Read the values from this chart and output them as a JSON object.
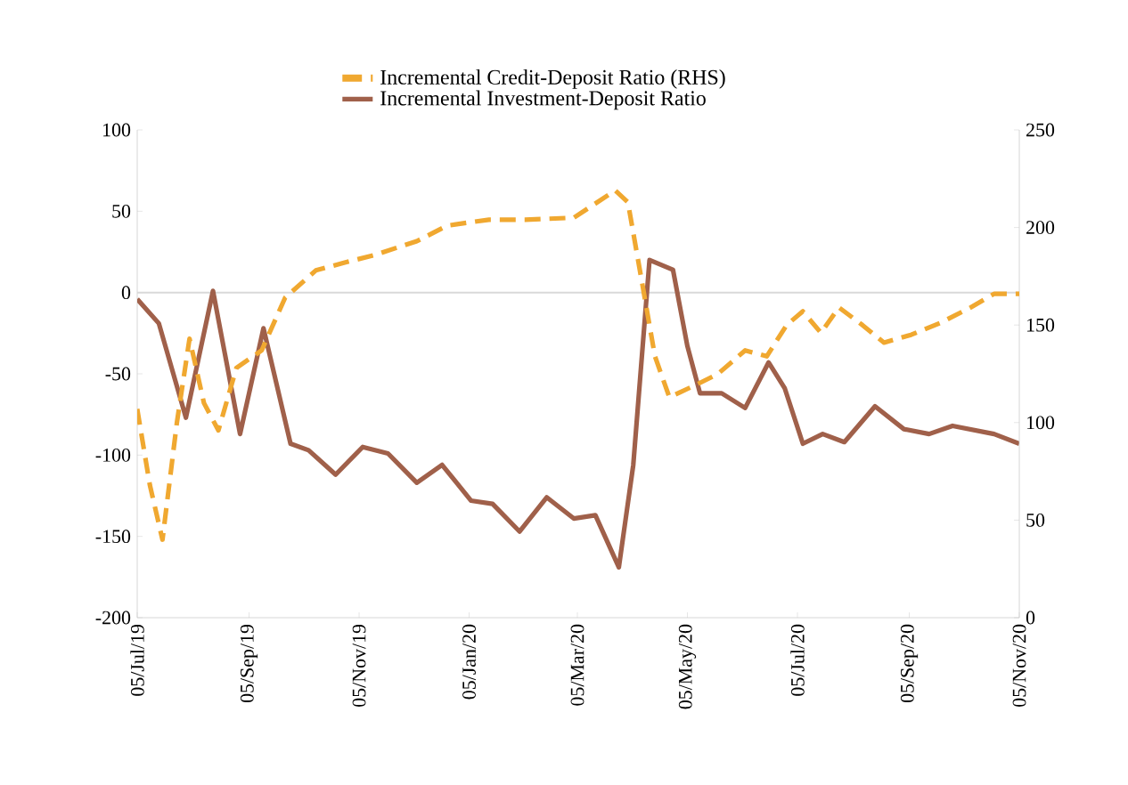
{
  "chart_data": {
    "type": "line",
    "xlim": [
      "2019-07-05",
      "2020-11-05"
    ],
    "xticks": [
      {
        "value": "2019-07-05",
        "label": "05/Jul/19"
      },
      {
        "value": "2019-09-05",
        "label": "05/Sep/19"
      },
      {
        "value": "2019-11-05",
        "label": "05/Nov/19"
      },
      {
        "value": "2020-01-05",
        "label": "05/Jan/20"
      },
      {
        "value": "2020-03-05",
        "label": "05/Mar/20"
      },
      {
        "value": "2020-05-05",
        "label": "05/May/20"
      },
      {
        "value": "2020-07-05",
        "label": "05/Jul/20"
      },
      {
        "value": "2020-09-05",
        "label": "05/Sep/20"
      },
      {
        "value": "2020-11-05",
        "label": "05/Nov/20"
      }
    ],
    "ylim": [
      -200,
      100
    ],
    "yticks": [
      -200,
      -150,
      -100,
      -50,
      0,
      50,
      100
    ],
    "y2lim": [
      0,
      250
    ],
    "y2ticks": [
      0,
      50,
      100,
      150,
      200,
      250
    ],
    "grid": false,
    "legend": "top",
    "marker": "none",
    "ref_lines": [
      {
        "axis": "y",
        "value": 0,
        "color": "#d9d9d9"
      }
    ],
    "series": [
      {
        "name": "Incremental Credit-Deposit Ratio (RHS)",
        "color": "#f0a830",
        "axis": "y2",
        "line_style": "dashed",
        "x": [
          "2019-07-05",
          "2019-07-12",
          "2019-07-19",
          "2019-07-27",
          "2019-08-03",
          "2019-08-11",
          "2019-08-19",
          "2019-08-29",
          "2019-09-12",
          "2019-09-25",
          "2019-10-12",
          "2019-10-28",
          "2019-11-14",
          "2019-12-07",
          "2019-12-24",
          "2020-01-16",
          "2020-02-05",
          "2020-03-03",
          "2020-03-26",
          "2020-04-02",
          "2020-04-10",
          "2020-04-17",
          "2020-04-25",
          "2020-05-09",
          "2020-05-22",
          "2020-06-06",
          "2020-06-18",
          "2020-06-29",
          "2020-07-08",
          "2020-07-18",
          "2020-07-28",
          "2020-08-10",
          "2020-08-22",
          "2020-09-06",
          "2020-09-22",
          "2020-10-09",
          "2020-10-22",
          "2020-11-05"
        ],
        "values": [
          107,
          68,
          40,
          100,
          143,
          110,
          96,
          128,
          137,
          164,
          178,
          182,
          186,
          193,
          201,
          204,
          204,
          205,
          219,
          213,
          171,
          134,
          113,
          119,
          125,
          137,
          134,
          150,
          157,
          146,
          159,
          150,
          141,
          145,
          151,
          159,
          166,
          166
        ]
      },
      {
        "name": "Incremental Investment-Deposit Ratio",
        "color": "#a0604a",
        "axis": "y",
        "line_style": "solid",
        "x": [
          "2019-07-05",
          "2019-07-17",
          "2019-08-01",
          "2019-08-16",
          "2019-08-31",
          "2019-09-13",
          "2019-09-28",
          "2019-10-08",
          "2019-10-23",
          "2019-11-07",
          "2019-11-21",
          "2019-12-07",
          "2019-12-21",
          "2020-01-06",
          "2020-01-18",
          "2020-02-02",
          "2020-02-17",
          "2020-03-03",
          "2020-03-15",
          "2020-03-28",
          "2020-04-05",
          "2020-04-14",
          "2020-04-27",
          "2020-05-05",
          "2020-05-12",
          "2020-05-24",
          "2020-06-06",
          "2020-06-19",
          "2020-06-28",
          "2020-07-08",
          "2020-07-19",
          "2020-07-31",
          "2020-08-17",
          "2020-09-02",
          "2020-09-16",
          "2020-09-29",
          "2020-10-22",
          "2020-11-05"
        ],
        "values": [
          -4,
          -19,
          -77,
          1,
          -87,
          -22,
          -93,
          -97,
          -112,
          -95,
          -99,
          -117,
          -106,
          -128,
          -130,
          -147,
          -126,
          -139,
          -137,
          -169,
          -106,
          20,
          14,
          -33,
          -62,
          -62,
          -71,
          -43,
          -59,
          -93,
          -87,
          -92,
          -70,
          -84,
          -87,
          -82,
          -87,
          -93
        ]
      }
    ]
  }
}
